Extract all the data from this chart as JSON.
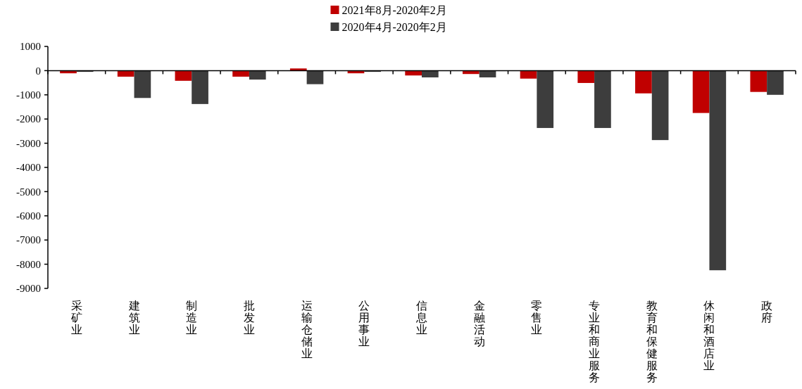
{
  "chart_data": {
    "type": "bar",
    "categories": [
      "采矿业",
      "建筑业",
      "制造业",
      "批发业",
      "运输仓储业",
      "公用事业",
      "信息业",
      "金融活动",
      "零售业",
      "专业和商业服务",
      "教育和保健服务",
      "休闲和酒店业",
      "政府"
    ],
    "series": [
      {
        "name": "2021年8月-2020年2月",
        "color": "#c00000",
        "values": [
          -110,
          -250,
          -420,
          -250,
          90,
          -110,
          -200,
          -140,
          -330,
          -510,
          -940,
          -1750,
          -880
        ]
      },
      {
        "name": "2020年4月-2020年2月",
        "color": "#3d3d3d",
        "values": [
          -50,
          -1130,
          -1380,
          -370,
          -560,
          -50,
          -280,
          -280,
          -2370,
          -2370,
          -2870,
          -8250,
          -1000
        ]
      }
    ],
    "ylim": [
      -9000,
      1000
    ],
    "yticks": [
      -9000,
      -8000,
      -7000,
      -6000,
      -5000,
      -4000,
      -3000,
      -2000,
      -1000,
      0,
      1000
    ],
    "legend": "top"
  }
}
